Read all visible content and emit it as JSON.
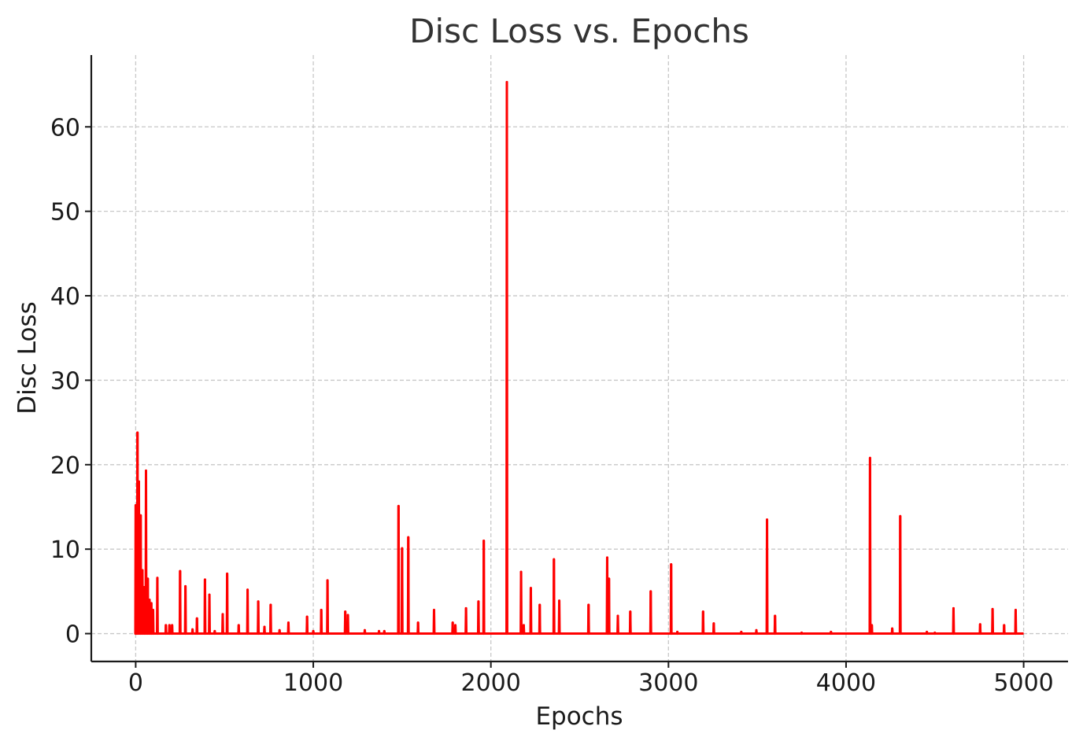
{
  "chart_data": {
    "type": "line",
    "title": "Disc Loss vs. Epochs",
    "xlabel": "Epochs",
    "ylabel": "Disc Loss",
    "xlim": [
      -250,
      5250
    ],
    "ylim": [
      -3.3,
      68.5
    ],
    "xticks": [
      0,
      1000,
      2000,
      3000,
      4000,
      5000
    ],
    "xtick_labels": [
      "0",
      "1000",
      "2000",
      "3000",
      "4000",
      "5000"
    ],
    "yticks": [
      0,
      10,
      20,
      30,
      40,
      50,
      60
    ],
    "ytick_labels": [
      "0",
      "10",
      "20",
      "30",
      "40",
      "50",
      "60"
    ],
    "grid": true,
    "legend": false,
    "line_color": "#ff0000",
    "series": [
      {
        "x_start": 0,
        "x_end": 5000,
        "baseline": 0,
        "spikes": [
          [
            0,
            15.2
          ],
          [
            5,
            10.0
          ],
          [
            10,
            23.8
          ],
          [
            18,
            18.0
          ],
          [
            28,
            14.0
          ],
          [
            38,
            7.5
          ],
          [
            48,
            5.5
          ],
          [
            58,
            19.3
          ],
          [
            68,
            6.5
          ],
          [
            78,
            4.0
          ],
          [
            88,
            3.6
          ],
          [
            98,
            2.8
          ],
          [
            122,
            6.6
          ],
          [
            170,
            1.0
          ],
          [
            190,
            1.0
          ],
          [
            205,
            1.0
          ],
          [
            250,
            7.4
          ],
          [
            280,
            5.6
          ],
          [
            320,
            0.5
          ],
          [
            345,
            1.8
          ],
          [
            390,
            6.4
          ],
          [
            415,
            4.6
          ],
          [
            445,
            0.3
          ],
          [
            490,
            2.3
          ],
          [
            515,
            7.1
          ],
          [
            580,
            1.0
          ],
          [
            630,
            5.2
          ],
          [
            690,
            3.8
          ],
          [
            725,
            0.8
          ],
          [
            760,
            3.4
          ],
          [
            810,
            0.4
          ],
          [
            860,
            1.3
          ],
          [
            965,
            2.0
          ],
          [
            1000,
            0.3
          ],
          [
            1045,
            2.8
          ],
          [
            1080,
            6.3
          ],
          [
            1180,
            2.6
          ],
          [
            1195,
            2.2
          ],
          [
            1290,
            0.4
          ],
          [
            1370,
            0.3
          ],
          [
            1400,
            0.3
          ],
          [
            1480,
            15.1
          ],
          [
            1500,
            10.1
          ],
          [
            1535,
            11.4
          ],
          [
            1590,
            1.3
          ],
          [
            1680,
            2.8
          ],
          [
            1785,
            1.3
          ],
          [
            1800,
            1.0
          ],
          [
            1860,
            3.0
          ],
          [
            1930,
            3.8
          ],
          [
            1960,
            11.0
          ],
          [
            2090,
            65.3
          ],
          [
            2170,
            7.3
          ],
          [
            2185,
            1.0
          ],
          [
            2225,
            5.4
          ],
          [
            2275,
            3.4
          ],
          [
            2355,
            8.8
          ],
          [
            2385,
            3.9
          ],
          [
            2550,
            3.4
          ],
          [
            2655,
            9.0
          ],
          [
            2665,
            6.5
          ],
          [
            2715,
            2.1
          ],
          [
            2785,
            2.6
          ],
          [
            2900,
            5.0
          ],
          [
            3015,
            8.2
          ],
          [
            3050,
            0.2
          ],
          [
            3195,
            2.6
          ],
          [
            3255,
            1.2
          ],
          [
            3410,
            0.2
          ],
          [
            3495,
            0.4
          ],
          [
            3555,
            13.5
          ],
          [
            3600,
            2.1
          ],
          [
            3750,
            0.1
          ],
          [
            3915,
            0.2
          ],
          [
            4135,
            20.8
          ],
          [
            4145,
            1.0
          ],
          [
            4260,
            0.6
          ],
          [
            4305,
            13.9
          ],
          [
            4455,
            0.2
          ],
          [
            4500,
            0.1
          ],
          [
            4605,
            3.0
          ],
          [
            4755,
            1.1
          ],
          [
            4825,
            2.9
          ],
          [
            4890,
            1.0
          ],
          [
            4955,
            2.8
          ]
        ]
      }
    ]
  }
}
